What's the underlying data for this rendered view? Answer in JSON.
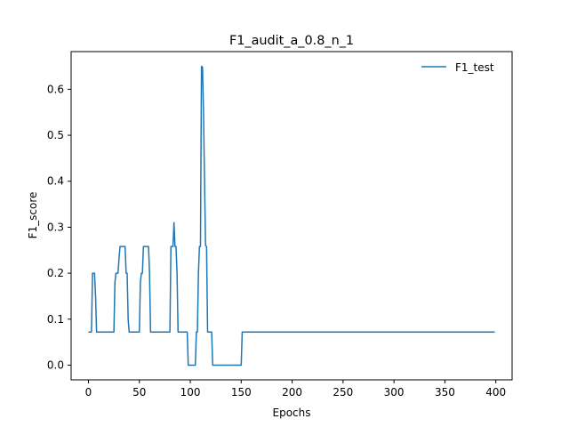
{
  "chart_data": {
    "type": "line",
    "title": "F1_audit_a_0.8_n_1",
    "xlabel": "Epochs",
    "ylabel": "F1_score",
    "xlim": [
      -17,
      416
    ],
    "ylim": [
      -0.032,
      0.682
    ],
    "xticks": [
      0,
      50,
      100,
      150,
      200,
      250,
      300,
      350,
      400
    ],
    "yticks": [
      0.0,
      0.1,
      0.2,
      0.3,
      0.4,
      0.5,
      0.6
    ],
    "ytick_labels": [
      "0.0",
      "0.1",
      "0.2",
      "0.3",
      "0.4",
      "0.5",
      "0.6"
    ],
    "grid": false,
    "legend": "top-right",
    "series": [
      {
        "name": "F1_test",
        "color": "#1f77b4",
        "x": [
          0,
          3,
          4,
          5,
          6,
          7,
          8,
          10,
          15,
          20,
          25,
          26,
          27,
          28,
          29,
          30,
          31,
          32,
          33,
          34,
          35,
          36,
          37,
          38,
          39,
          40,
          45,
          50,
          51,
          52,
          53,
          54,
          55,
          56,
          57,
          58,
          59,
          60,
          61,
          62,
          63,
          65,
          70,
          75,
          80,
          81,
          82,
          83,
          84,
          85,
          86,
          87,
          88,
          89,
          90,
          93,
          97,
          98,
          99,
          100,
          105,
          106,
          107,
          108,
          109,
          110,
          111,
          112,
          113,
          114,
          115,
          116,
          117,
          118,
          119,
          120,
          121,
          122,
          123,
          124,
          130,
          140,
          149,
          150,
          151,
          152,
          160,
          200,
          250,
          300,
          350,
          399
        ],
        "values": [
          0.072,
          0.072,
          0.2,
          0.2,
          0.2,
          0.15,
          0.072,
          0.072,
          0.072,
          0.072,
          0.072,
          0.18,
          0.2,
          0.2,
          0.2,
          0.23,
          0.258,
          0.258,
          0.258,
          0.258,
          0.258,
          0.258,
          0.2,
          0.2,
          0.1,
          0.072,
          0.072,
          0.072,
          0.18,
          0.2,
          0.2,
          0.258,
          0.258,
          0.258,
          0.258,
          0.258,
          0.258,
          0.2,
          0.072,
          0.072,
          0.072,
          0.072,
          0.072,
          0.072,
          0.072,
          0.258,
          0.258,
          0.258,
          0.31,
          0.258,
          0.258,
          0.2,
          0.072,
          0.072,
          0.072,
          0.072,
          0.072,
          0.0,
          0.0,
          0.0,
          0.0,
          0.072,
          0.072,
          0.2,
          0.258,
          0.258,
          0.65,
          0.648,
          0.55,
          0.4,
          0.26,
          0.258,
          0.072,
          0.072,
          0.072,
          0.072,
          0.072,
          0.0,
          0.0,
          0.0,
          0.0,
          0.0,
          0.0,
          0.0,
          0.072,
          0.072,
          0.072,
          0.072,
          0.072,
          0.072,
          0.072,
          0.072
        ]
      }
    ]
  }
}
